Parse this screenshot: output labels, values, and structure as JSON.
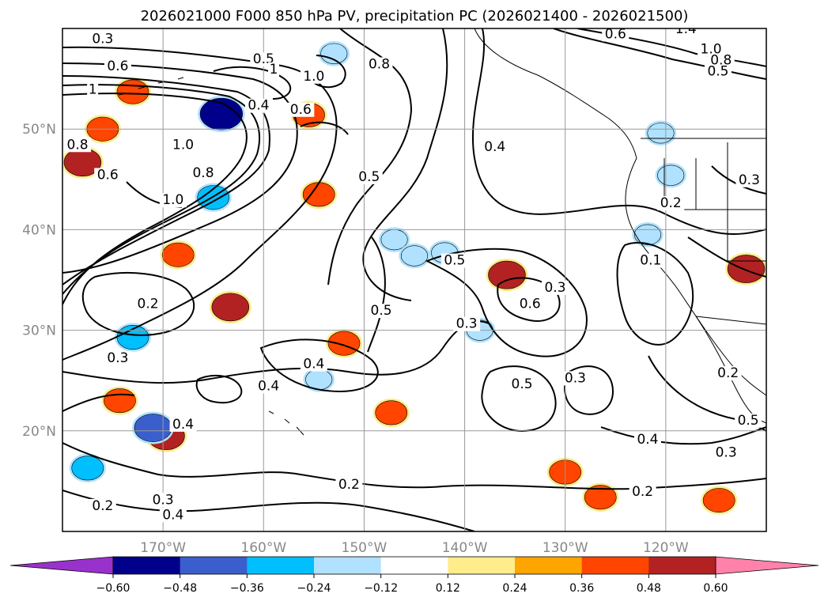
{
  "chart_data": {
    "type": "heatmap",
    "title": "2026021000 F000 850 hPa PV, precipitation PC (2026021400 - 2026021500)",
    "map": {
      "lon_range": [
        -180,
        -110
      ],
      "lat_range": [
        10,
        60
      ],
      "grid": true,
      "x_ticks": [
        {
          "value": -170,
          "label": "170°W"
        },
        {
          "value": -160,
          "label": "160°W"
        },
        {
          "value": -150,
          "label": "150°W"
        },
        {
          "value": -140,
          "label": "140°W"
        },
        {
          "value": -130,
          "label": "130°W"
        },
        {
          "value": -120,
          "label": "120°W"
        }
      ],
      "y_ticks": [
        {
          "value": 20,
          "label": "20°N"
        },
        {
          "value": 30,
          "label": "30°N"
        },
        {
          "value": 40,
          "label": "40°N"
        },
        {
          "value": 50,
          "label": "50°N"
        }
      ]
    },
    "colorbar": {
      "boundaries": [
        -0.6,
        -0.48,
        -0.36,
        -0.24,
        -0.12,
        0.12,
        0.24,
        0.36,
        0.48,
        0.6
      ],
      "labels": [
        "−0.60",
        "−0.48",
        "−0.36",
        "−0.24",
        "−0.12",
        "0.12",
        "0.24",
        "0.36",
        "0.48",
        "0.60"
      ],
      "colors": [
        "#9932cc",
        "#00008b",
        "#3a5fcd",
        "#00bfff",
        "#b0e2ff",
        "#ffffff",
        "#ffec8b",
        "#ffa500",
        "#ff4500",
        "#b22222",
        "#ff82ab"
      ],
      "extend": "both"
    },
    "pv_contour_labels": [
      {
        "lon": -176.0,
        "lat": 59.0,
        "text": "0.3"
      },
      {
        "lon": -174.5,
        "lat": 56.3,
        "text": "0.6"
      },
      {
        "lon": -177.0,
        "lat": 54.0,
        "text": "1"
      },
      {
        "lon": -178.5,
        "lat": 48.5,
        "text": "0.8"
      },
      {
        "lon": -175.5,
        "lat": 45.5,
        "text": "0.6"
      },
      {
        "lon": -168.0,
        "lat": 48.5,
        "text": "1.0"
      },
      {
        "lon": -166.0,
        "lat": 45.7,
        "text": "0.8"
      },
      {
        "lon": -169.0,
        "lat": 43.0,
        "text": "1.0"
      },
      {
        "lon": -160.5,
        "lat": 52.4,
        "text": "0.4"
      },
      {
        "lon": -156.3,
        "lat": 52.0,
        "text": "0.6"
      },
      {
        "lon": -160.0,
        "lat": 57.0,
        "text": "0.5"
      },
      {
        "lon": -155.0,
        "lat": 55.3,
        "text": "1.0"
      },
      {
        "lon": -159.0,
        "lat": 56.0,
        "text": "1"
      },
      {
        "lon": -148.5,
        "lat": 56.5,
        "text": "0.8"
      },
      {
        "lon": -149.5,
        "lat": 45.3,
        "text": "0.5"
      },
      {
        "lon": -137.0,
        "lat": 48.3,
        "text": "0.4"
      },
      {
        "lon": -125.0,
        "lat": 59.5,
        "text": "0.6"
      },
      {
        "lon": -118.0,
        "lat": 60.0,
        "text": "1.4"
      },
      {
        "lon": -115.5,
        "lat": 58.0,
        "text": "1.0"
      },
      {
        "lon": -114.5,
        "lat": 56.9,
        "text": "0.8"
      },
      {
        "lon": -114.8,
        "lat": 55.8,
        "text": "0.5"
      },
      {
        "lon": -111.7,
        "lat": 45.0,
        "text": "0.3"
      },
      {
        "lon": -119.5,
        "lat": 42.7,
        "text": "0.2"
      },
      {
        "lon": -121.5,
        "lat": 37.0,
        "text": "0.1"
      },
      {
        "lon": -171.5,
        "lat": 32.7,
        "text": "0.2"
      },
      {
        "lon": -174.5,
        "lat": 27.3,
        "text": "0.3"
      },
      {
        "lon": -155.0,
        "lat": 26.7,
        "text": "0.4"
      },
      {
        "lon": -159.5,
        "lat": 24.5,
        "text": "0.4"
      },
      {
        "lon": -148.3,
        "lat": 32.0,
        "text": "0.5"
      },
      {
        "lon": -141.0,
        "lat": 37.0,
        "text": "0.5"
      },
      {
        "lon": -133.5,
        "lat": 32.7,
        "text": "0.6"
      },
      {
        "lon": -131.0,
        "lat": 34.3,
        "text": "0.3"
      },
      {
        "lon": -139.8,
        "lat": 30.7,
        "text": "0.3"
      },
      {
        "lon": -134.3,
        "lat": 24.7,
        "text": "0.5"
      },
      {
        "lon": -129.0,
        "lat": 25.3,
        "text": "0.3"
      },
      {
        "lon": -121.8,
        "lat": 19.2,
        "text": "0.4"
      },
      {
        "lon": -113.8,
        "lat": 25.8,
        "text": "0.2"
      },
      {
        "lon": -111.8,
        "lat": 21.1,
        "text": "0.5"
      },
      {
        "lon": -114.0,
        "lat": 17.9,
        "text": "0.3"
      },
      {
        "lon": -122.3,
        "lat": 14.0,
        "text": "0.2"
      },
      {
        "lon": -151.5,
        "lat": 14.7,
        "text": "0.2"
      },
      {
        "lon": -170.0,
        "lat": 13.2,
        "text": "0.3"
      },
      {
        "lon": -169.0,
        "lat": 11.7,
        "text": "0.4"
      },
      {
        "lon": -176.0,
        "lat": 12.6,
        "text": "0.2"
      },
      {
        "lon": -168.0,
        "lat": 20.7,
        "text": "0.4"
      }
    ],
    "precip_pc_areas": [
      {
        "lon": -169.7,
        "lat": 19.5,
        "value": 0.48
      },
      {
        "lon": -174.3,
        "lat": 23.0,
        "value": 0.36
      },
      {
        "lon": -152.0,
        "lat": 28.7,
        "value": 0.36
      },
      {
        "lon": -163.3,
        "lat": 32.3,
        "value": 0.48
      },
      {
        "lon": -135.8,
        "lat": 35.5,
        "value": 0.48
      },
      {
        "lon": -130.0,
        "lat": 15.9,
        "value": 0.36
      },
      {
        "lon": -112.0,
        "lat": 36.1,
        "value": 0.48
      },
      {
        "lon": -154.5,
        "lat": 43.5,
        "value": 0.36
      },
      {
        "lon": -178.0,
        "lat": 46.7,
        "value": 0.48
      },
      {
        "lon": -155.5,
        "lat": 51.4,
        "value": 0.36
      },
      {
        "lon": -176.0,
        "lat": 50.0,
        "value": 0.36
      },
      {
        "lon": -173.0,
        "lat": 53.7,
        "value": 0.36
      },
      {
        "lon": -168.5,
        "lat": 37.5,
        "value": 0.36
      },
      {
        "lon": -147.3,
        "lat": 21.8,
        "value": 0.36
      },
      {
        "lon": -126.5,
        "lat": 13.4,
        "value": 0.36
      },
      {
        "lon": -114.7,
        "lat": 13.1,
        "value": 0.36
      },
      {
        "lon": -164.2,
        "lat": 51.5,
        "value": -0.6
      },
      {
        "lon": -165.0,
        "lat": 43.2,
        "value": -0.36
      },
      {
        "lon": -177.5,
        "lat": 16.3,
        "value": -0.36
      },
      {
        "lon": -173.0,
        "lat": 29.3,
        "value": -0.36
      },
      {
        "lon": -171.0,
        "lat": 20.3,
        "value": -0.48
      },
      {
        "lon": -153.0,
        "lat": 57.5,
        "value": -0.24
      },
      {
        "lon": -147.0,
        "lat": 39.0,
        "value": -0.24
      },
      {
        "lon": -145.0,
        "lat": 37.4,
        "value": -0.24
      },
      {
        "lon": -142.0,
        "lat": 37.7,
        "value": -0.24
      },
      {
        "lon": -138.5,
        "lat": 30.0,
        "value": -0.24
      },
      {
        "lon": -121.8,
        "lat": 39.5,
        "value": -0.24
      },
      {
        "lon": -120.5,
        "lat": 49.6,
        "value": -0.24
      },
      {
        "lon": -119.5,
        "lat": 45.4,
        "value": -0.24
      },
      {
        "lon": -154.5,
        "lat": 25.1,
        "value": -0.24
      }
    ]
  }
}
